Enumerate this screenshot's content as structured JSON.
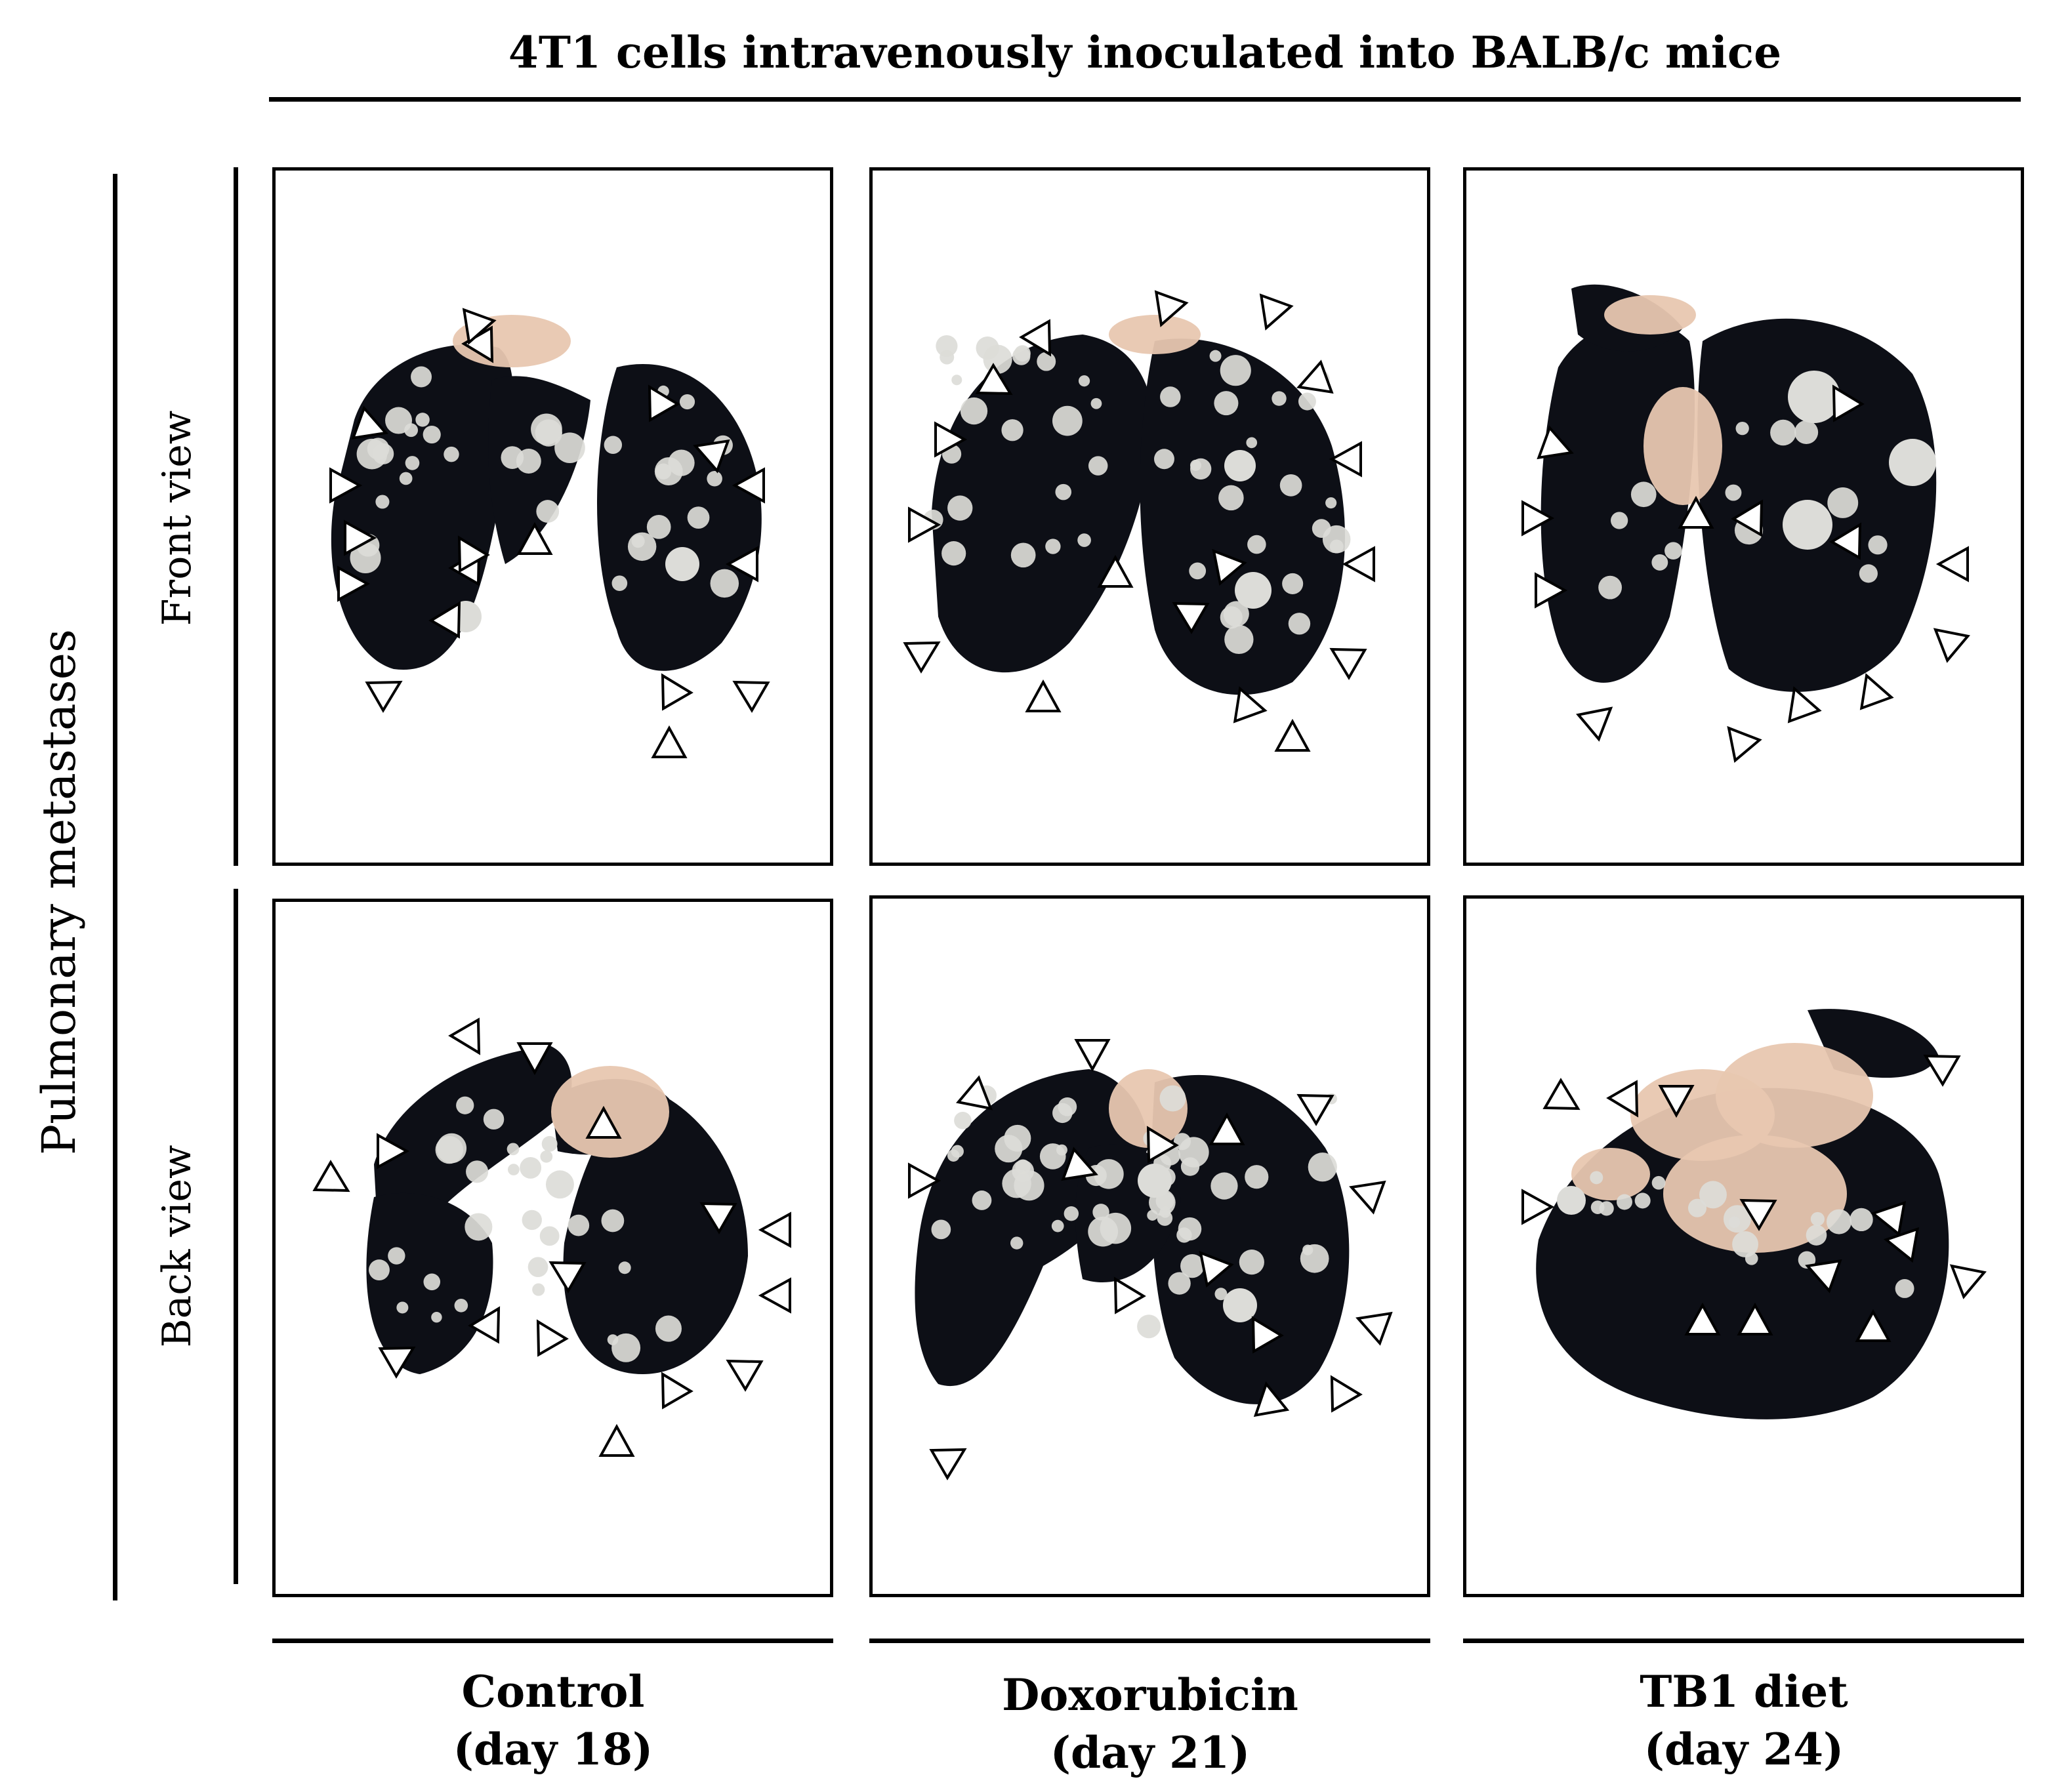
{
  "figure": {
    "title": "4T1 cells intravenously inoculated into BALB/c mice",
    "row_group_label": "Pulmonary metastases",
    "rows": [
      {
        "label": "Front view"
      },
      {
        "label": "Back view"
      }
    ],
    "columns": [
      {
        "name": "Control",
        "day": "(day 18)"
      },
      {
        "name": "Doxorubicin",
        "day": "(day 21)"
      },
      {
        "name": "TB1 diet",
        "day": "(day 24)"
      }
    ],
    "panels": [
      {
        "row": "Front view",
        "column": "Control",
        "arrowhead_count": 20
      },
      {
        "row": "Front view",
        "column": "Doxorubicin",
        "arrowhead_count": 21
      },
      {
        "row": "Front view",
        "column": "TB1 diet",
        "arrowhead_count": 15
      },
      {
        "row": "Back view",
        "column": "Control",
        "arrowhead_count": 19
      },
      {
        "row": "Back view",
        "column": "Doxorubicin",
        "arrowhead_count": 19
      },
      {
        "row": "Back view",
        "column": "TB1 diet",
        "arrowhead_count": 15
      }
    ],
    "colors": {
      "lung": "#0d0f16",
      "nodule": "#dcdcd8",
      "tissue": "#e8c7b0",
      "arrowhead_fill": "#ffffff",
      "arrowhead_stroke": "#000000"
    }
  }
}
